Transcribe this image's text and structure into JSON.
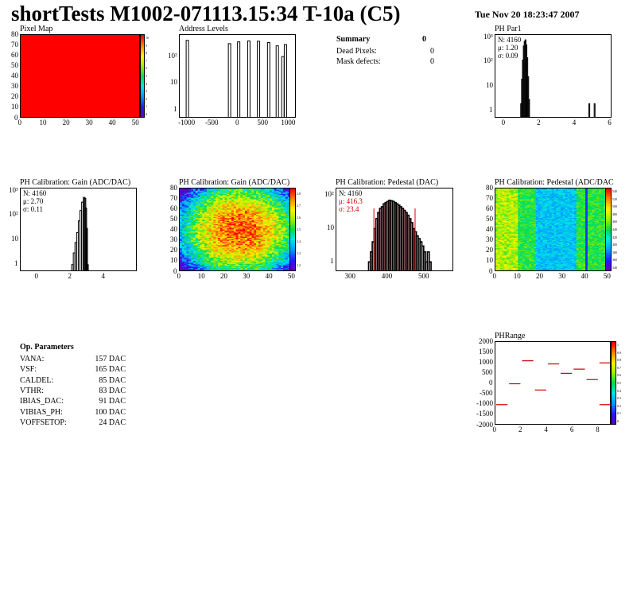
{
  "header": {
    "title": "shortTests M1002-071113.15:34 T-10a (C5)",
    "datestamp": "Tue Nov 20 18:23:47 2007"
  },
  "summary": {
    "title": "Summary",
    "title_value": "0",
    "dead_label": "Dead Pixels:",
    "dead_value": "0",
    "mask_label": "Mask defects:",
    "mask_value": "0"
  },
  "op_params": {
    "title": "Op. Parameters",
    "rows": [
      {
        "name": "VANA:",
        "value": "157 DAC"
      },
      {
        "name": "VSF:",
        "value": "165 DAC"
      },
      {
        "name": "CALDEL:",
        "value": "85 DAC"
      },
      {
        "name": "VTHR:",
        "value": "83 DAC"
      },
      {
        "name": "IBIAS_DAC:",
        "value": "91 DAC"
      },
      {
        "name": "VIBIAS_PH:",
        "value": "100 DAC"
      },
      {
        "name": "VOFFSETOP:",
        "value": "24 DAC"
      }
    ]
  },
  "colors": {
    "line": "#000000",
    "fit": "#d00000",
    "fill_red": "#ff0000"
  },
  "chart_data": [
    {
      "id": "pixel_map",
      "type": "heatmap",
      "title": "Pixel Map",
      "xticks": [
        "0",
        "10",
        "20",
        "30",
        "40",
        "50"
      ],
      "yticks": [
        "0",
        "10",
        "20",
        "30",
        "40",
        "50",
        "60",
        "70",
        "80"
      ],
      "xlim": [
        0,
        52
      ],
      "ylim": [
        0,
        80
      ],
      "uniform_value": 10,
      "zticks": [
        "0",
        "1",
        "2",
        "3",
        "4",
        "5",
        "6",
        "7",
        "8",
        "9",
        "10"
      ]
    },
    {
      "id": "address_levels",
      "type": "bar",
      "title": "Address Levels",
      "log_y": true,
      "xticks": [
        "-1000",
        "-500",
        "0",
        "500",
        "1000"
      ],
      "yticks": [
        "1",
        "10",
        "10²"
      ],
      "xlim": [
        -1150,
        1150
      ],
      "peaks": [
        {
          "x": -1000,
          "value": 400
        },
        {
          "x": -170,
          "value": 300
        },
        {
          "x": 10,
          "value": 350
        },
        {
          "x": 210,
          "value": 380
        },
        {
          "x": 400,
          "value": 370
        },
        {
          "x": 600,
          "value": 330
        },
        {
          "x": 770,
          "value": 250
        },
        {
          "x": 880,
          "value": 100
        },
        {
          "x": 930,
          "value": 280
        }
      ]
    },
    {
      "id": "ph_par1",
      "type": "bar",
      "title": "PH Par1",
      "log_y": true,
      "xticks": [
        "0",
        "2",
        "4",
        "6"
      ],
      "yticks": [
        "1",
        "10",
        "10²",
        "10³"
      ],
      "xlim": [
        -0.5,
        6.1
      ],
      "stats": {
        "n": "N: 4160",
        "mean": "μ: 1.20",
        "sigma": "σ: 0.09"
      },
      "bins": [
        [
          0.95,
          2
        ],
        [
          1.0,
          20
        ],
        [
          1.05,
          120
        ],
        [
          1.1,
          450
        ],
        [
          1.15,
          700
        ],
        [
          1.2,
          800
        ],
        [
          1.25,
          500
        ],
        [
          1.3,
          150
        ],
        [
          1.35,
          25
        ],
        [
          1.4,
          3
        ],
        [
          4.8,
          2
        ],
        [
          5.1,
          2
        ]
      ]
    },
    {
      "id": "gain_hist",
      "type": "bar",
      "title": "PH Calibration: Gain (ADC/DAC)",
      "log_y": true,
      "xticks": [
        "0",
        "2",
        "4"
      ],
      "yticks": [
        "1",
        "10",
        "10²",
        "10³"
      ],
      "xlim": [
        -1,
        6
      ],
      "stats": {
        "n": "N: 4160",
        "mean": "μ: 2.70",
        "sigma": "σ: 0.11"
      },
      "bins": [
        [
          2.1,
          1
        ],
        [
          2.2,
          3
        ],
        [
          2.3,
          8
        ],
        [
          2.4,
          20
        ],
        [
          2.5,
          60
        ],
        [
          2.6,
          160
        ],
        [
          2.7,
          350
        ],
        [
          2.8,
          550
        ],
        [
          2.85,
          500
        ],
        [
          2.9,
          200
        ],
        [
          2.95,
          30
        ],
        [
          3.0,
          1
        ]
      ]
    },
    {
      "id": "gain_map",
      "type": "heatmap",
      "title": "PH Calibration: Gain (ADC/DAC)",
      "xticks": [
        "0",
        "10",
        "20",
        "30",
        "40",
        "50"
      ],
      "yticks": [
        "0",
        "10",
        "20",
        "30",
        "40",
        "50",
        "60",
        "70",
        "80"
      ],
      "xlim": [
        0,
        52
      ],
      "ylim": [
        0,
        80
      ],
      "zticks": [
        "2.2",
        "2.3",
        "2.4",
        "2.5",
        "2.6",
        "2.7",
        "2.8"
      ],
      "zlim": [
        2.15,
        2.85
      ]
    },
    {
      "id": "pedestal_hist",
      "type": "bar",
      "title": "PH Calibration: Pedestal (DAC)",
      "log_y": true,
      "xticks": [
        "300",
        "400",
        "500"
      ],
      "yticks": [
        "1",
        "10",
        "10²"
      ],
      "xlim": [
        260,
        580
      ],
      "stats": {
        "n": "N: 4160",
        "mean": "μ: 416.3",
        "sigma": "σ: 23.4"
      },
      "fit_range": [
        362,
        474
      ],
      "bins": [
        [
          350,
          1
        ],
        [
          355,
          2
        ],
        [
          360,
          4
        ],
        [
          365,
          10
        ],
        [
          370,
          20
        ],
        [
          375,
          30
        ],
        [
          380,
          40
        ],
        [
          385,
          45
        ],
        [
          390,
          55
        ],
        [
          395,
          60
        ],
        [
          400,
          65
        ],
        [
          405,
          70
        ],
        [
          410,
          68
        ],
        [
          415,
          65
        ],
        [
          420,
          60
        ],
        [
          425,
          55
        ],
        [
          430,
          50
        ],
        [
          435,
          45
        ],
        [
          440,
          40
        ],
        [
          445,
          35
        ],
        [
          450,
          30
        ],
        [
          455,
          25
        ],
        [
          460,
          20
        ],
        [
          465,
          15
        ],
        [
          470,
          10
        ],
        [
          475,
          8
        ],
        [
          480,
          6
        ],
        [
          485,
          5
        ],
        [
          490,
          4
        ],
        [
          495,
          3
        ],
        [
          500,
          2
        ],
        [
          505,
          1
        ],
        [
          510,
          2
        ],
        [
          515,
          1
        ]
      ]
    },
    {
      "id": "pedestal_map",
      "type": "heatmap",
      "title": "PH Calibration: Pedestal (ADC/DAC",
      "xticks": [
        "0",
        "10",
        "20",
        "30",
        "40",
        "50"
      ],
      "yticks": [
        "0",
        "10",
        "20",
        "30",
        "40",
        "50",
        "60",
        "70",
        "80"
      ],
      "xlim": [
        0,
        52
      ],
      "ylim": [
        0,
        80
      ],
      "zticks": [
        "340",
        "360",
        "380",
        "400",
        "420",
        "440",
        "460",
        "480",
        "500",
        "520",
        "540"
      ]
    },
    {
      "id": "ph_range",
      "type": "scatter",
      "title": "PHRange",
      "xticks": [
        "0",
        "2",
        "4",
        "6",
        "8"
      ],
      "yticks": [
        "-2000",
        "-1500",
        "-1000",
        "-500",
        "0",
        "500",
        "1000",
        "1500",
        "2000"
      ],
      "xlim": [
        0,
        9
      ],
      "ylim": [
        -2000,
        2000
      ],
      "zticks": [
        "0",
        "0.1",
        "0.2",
        "0.3",
        "0.4",
        "0.5",
        "0.6",
        "0.7",
        "0.8",
        "0.9",
        "1"
      ],
      "segments": [
        {
          "x0": 0,
          "x1": 1,
          "y": -1000
        },
        {
          "x0": 1,
          "x1": 2,
          "y": 0
        },
        {
          "x0": 2,
          "x1": 3,
          "y": 1100
        },
        {
          "x0": 3,
          "x1": 4,
          "y": -300
        },
        {
          "x0": 4,
          "x1": 5,
          "y": 950
        },
        {
          "x0": 5,
          "x1": 6,
          "y": 500
        },
        {
          "x0": 6,
          "x1": 7,
          "y": 700
        },
        {
          "x0": 7,
          "x1": 8,
          "y": 200
        },
        {
          "x0": 8,
          "x1": 9,
          "y": 1000
        },
        {
          "x0": 8,
          "x1": 9,
          "y": -1000
        }
      ]
    }
  ]
}
